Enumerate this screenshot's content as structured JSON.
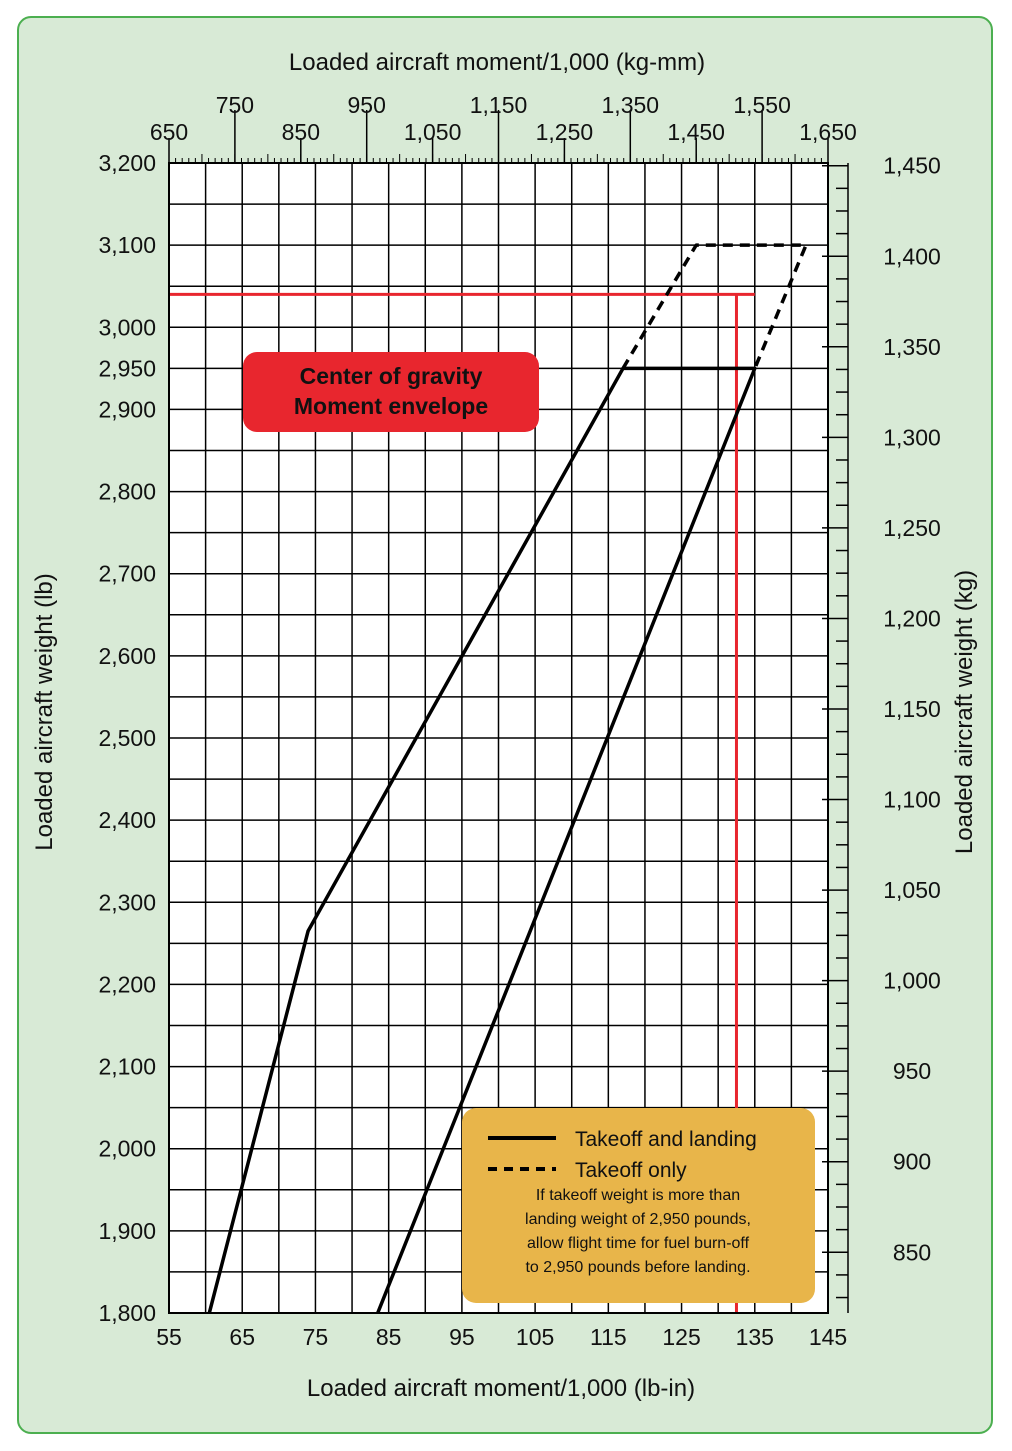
{
  "chart_data": {
    "type": "line",
    "x_bottom": {
      "label": "Loaded aircraft moment/1,000 (lb-in)",
      "range": [
        55,
        145
      ],
      "ticks": [
        55,
        65,
        75,
        85,
        95,
        105,
        115,
        125,
        135,
        145
      ],
      "tick_labels": [
        "55",
        "65",
        "75",
        "85",
        "95",
        "105",
        "115",
        "125",
        "135",
        "145"
      ]
    },
    "x_top": {
      "label": "Loaded aircraft moment/1,000 (kg-mm)",
      "range": [
        650,
        1650
      ],
      "ticks": [
        650,
        750,
        850,
        950,
        1050,
        1150,
        1250,
        1350,
        1450,
        1550,
        1650
      ],
      "tick_labels": [
        "650",
        "750",
        "850",
        "950",
        "1,050",
        "1,150",
        "1,250",
        "1,350",
        "1,450",
        "1,550",
        "1,650"
      ]
    },
    "y_left": {
      "label": "Loaded aircraft weight (lb)",
      "range": [
        1800,
        3200
      ],
      "ticks": [
        1800,
        1900,
        2000,
        2100,
        2200,
        2300,
        2400,
        2500,
        2600,
        2700,
        2800,
        2900,
        2950,
        3000,
        3100,
        3200
      ],
      "tick_labels": [
        "1,800",
        "1,900",
        "2,000",
        "2,100",
        "2,200",
        "2,300",
        "2,400",
        "2,500",
        "2,600",
        "2,700",
        "2,800",
        "2,900",
        "2,950",
        "3,000",
        "3,100",
        "3,200"
      ]
    },
    "y_right": {
      "label": "Loaded aircraft weight (kg)",
      "ticks": [
        850,
        900,
        950,
        1000,
        1050,
        1100,
        1150,
        1200,
        1250,
        1300,
        1350,
        1400,
        1450
      ],
      "tick_labels": [
        "850",
        "900",
        "950",
        "1,000",
        "1,050",
        "1,100",
        "1,150",
        "1,200",
        "1,250",
        "1,300",
        "1,350",
        "1,400",
        "1,450"
      ]
    },
    "series": [
      {
        "name": "Takeoff and landing",
        "style": "solid",
        "color": "#000000",
        "points": [
          [
            60.5,
            1800
          ],
          [
            74,
            2265
          ],
          [
            117,
            2950
          ],
          [
            135,
            2950
          ],
          [
            83.5,
            1800
          ]
        ]
      },
      {
        "name": "Takeoff only",
        "style": "dashed",
        "color": "#000000",
        "points": [
          [
            117,
            2950
          ],
          [
            127,
            3100
          ],
          [
            142,
            3100
          ],
          [
            135,
            2950
          ]
        ]
      }
    ],
    "reference_lines": [
      {
        "orientation": "horizontal",
        "y": 3040,
        "x_range": [
          55,
          135
        ],
        "color": "#e8262e"
      },
      {
        "orientation": "vertical",
        "x": 132.5,
        "y_range": [
          1800,
          3040
        ],
        "color": "#e8262e"
      }
    ],
    "grid": true,
    "badge": {
      "line1": "Center of gravity",
      "line2": "Moment envelope",
      "color": "#e8262e"
    },
    "legend": {
      "placement": "bottom-right",
      "background": "#e8b54a",
      "solid_label": "Takeoff and landing",
      "dashed_label": "Takeoff only",
      "note_lines": [
        "If takeoff weight is more than",
        "landing weight of 2,950 pounds,",
        "allow flight time for fuel burn-off",
        "to 2,950 pounds before landing."
      ]
    }
  }
}
